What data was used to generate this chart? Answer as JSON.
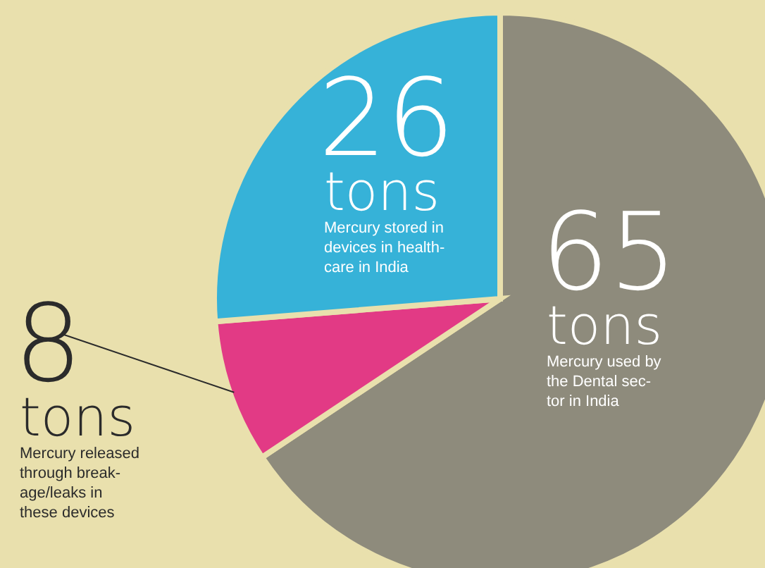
{
  "chart_data": {
    "type": "pie",
    "categories": [
      "Mercury used by\nthe Dental sec-\ntor in India",
      "Mercury released\nthrough break-\nage/leaks in\nthese devices",
      "Mercury stored in\ndevices in health-\ncare in India"
    ],
    "values": [
      65,
      8,
      26
    ],
    "value_labels": [
      "65 tons",
      "8 tons",
      "26 tons"
    ],
    "colors": [
      "#8e8b7c",
      "#e23a85",
      "#36b2d8"
    ],
    "legend": false
  }
}
